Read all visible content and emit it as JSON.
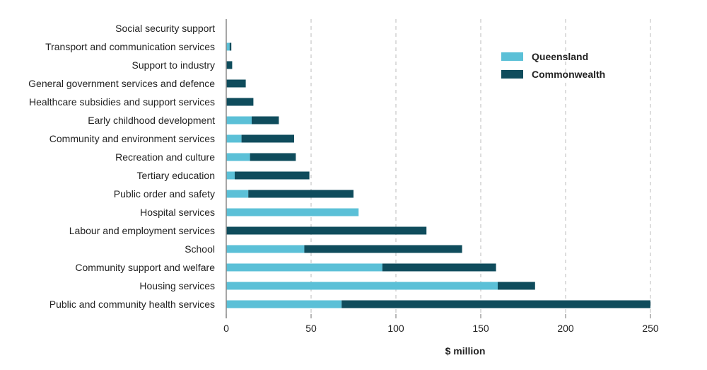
{
  "chart_data": {
    "type": "bar",
    "orientation": "horizontal",
    "stacked": true,
    "categories": [
      "Social security support",
      "Transport and communication services",
      "Support to industry",
      "General government services and defence",
      "Healthcare subsidies and support services",
      "Early childhood development",
      "Community and environment services",
      "Recreation and culture",
      "Tertiary education",
      "Public order and safety",
      "Hospital services",
      "Labour and employment services",
      "School",
      "Community support and welfare",
      "Housing services",
      "Public and community health services"
    ],
    "series": [
      {
        "name": "Queensland",
        "color": "#5bc0d7",
        "values": [
          0,
          2,
          0,
          0,
          0,
          15,
          9,
          14,
          5,
          13,
          78,
          0,
          46,
          92,
          160,
          68
        ]
      },
      {
        "name": "Commonwealth",
        "color": "#0f4c5c",
        "values": [
          0,
          1,
          3.5,
          11.5,
          16,
          16,
          31,
          27,
          44,
          62,
          0,
          118,
          93,
          67,
          22,
          182
        ]
      }
    ],
    "x_ticks": [
      "0",
      "50",
      "100",
      "150",
      "200",
      "250"
    ],
    "xlim": [
      0,
      250
    ],
    "xlabel": "$ million",
    "title": "",
    "legend_position": "top-right",
    "grid": "vertical dashed"
  }
}
